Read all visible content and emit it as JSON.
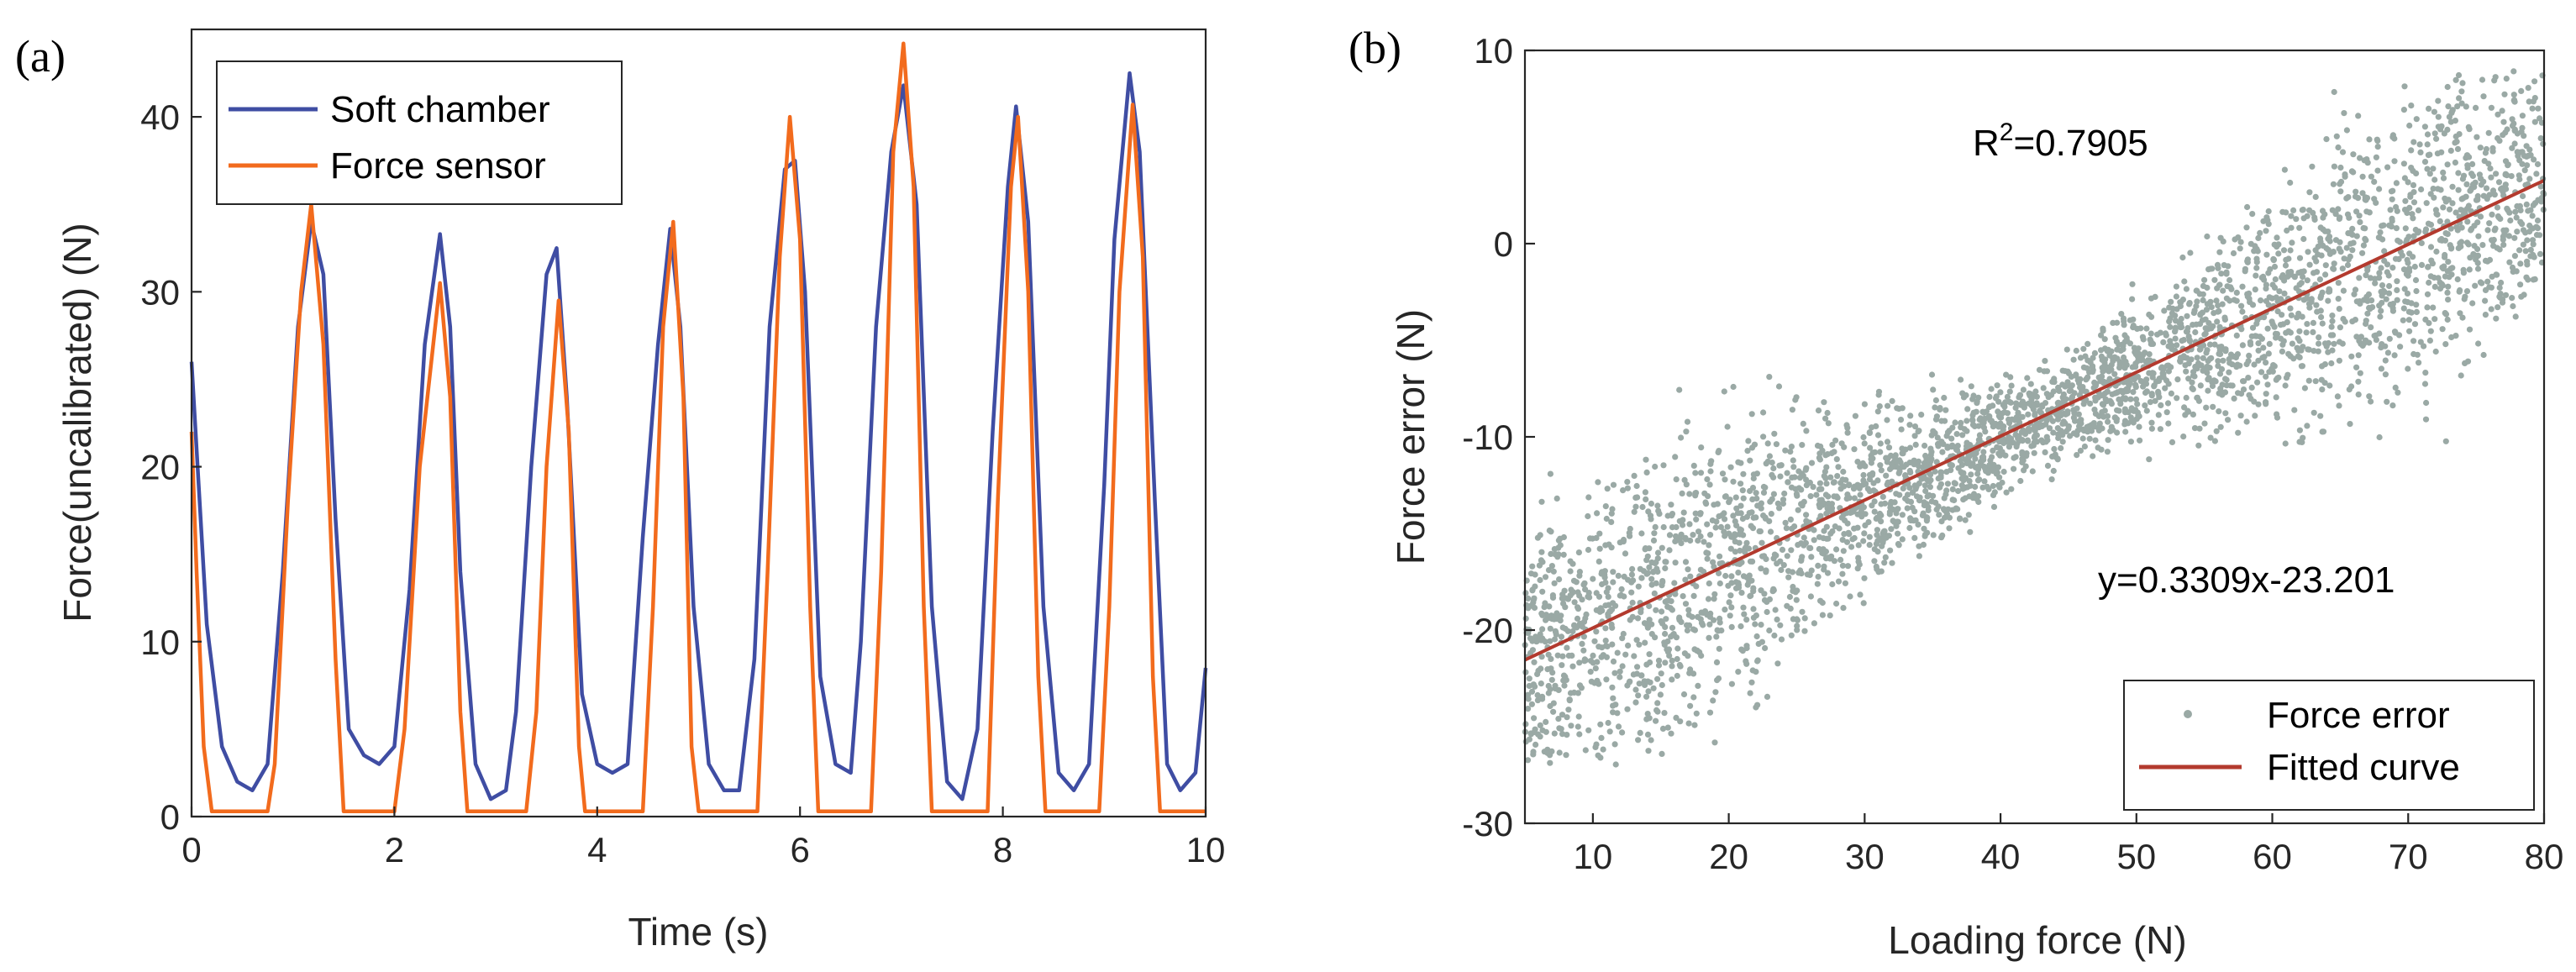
{
  "chart_data": [
    {
      "type": "line",
      "panel_label": "(a)",
      "xlabel": "Time (s)",
      "ylabel": "Force(uncalibrated) (N)",
      "xlim": [
        0,
        10
      ],
      "ylim": [
        0,
        45
      ],
      "xticks": [
        "0",
        "2",
        "4",
        "6",
        "8",
        "10"
      ],
      "yticks": [
        "0",
        "10",
        "20",
        "30",
        "40"
      ],
      "legend_position": "top-left",
      "legend": [
        "Soft chamber",
        "Force sensor"
      ],
      "colors": {
        "soft": "#3F4DA3",
        "sensor": "#F26B1D"
      },
      "series": [
        {
          "name": "Soft chamber",
          "points": [
            [
              0,
              26
            ],
            [
              0.05,
              21
            ],
            [
              0.15,
              11
            ],
            [
              0.3,
              4
            ],
            [
              0.45,
              2
            ],
            [
              0.6,
              1.5
            ],
            [
              0.75,
              3
            ],
            [
              0.9,
              14
            ],
            [
              1.05,
              28
            ],
            [
              1.18,
              34
            ],
            [
              1.3,
              31
            ],
            [
              1.42,
              17
            ],
            [
              1.55,
              5
            ],
            [
              1.7,
              3.5
            ],
            [
              1.85,
              3
            ],
            [
              2.0,
              4
            ],
            [
              2.15,
              13
            ],
            [
              2.3,
              27
            ],
            [
              2.45,
              33.3
            ],
            [
              2.55,
              28
            ],
            [
              2.65,
              14
            ],
            [
              2.8,
              3
            ],
            [
              2.95,
              1
            ],
            [
              3.1,
              1.5
            ],
            [
              3.2,
              6
            ],
            [
              3.35,
              20
            ],
            [
              3.5,
              31
            ],
            [
              3.6,
              32.5
            ],
            [
              3.7,
              24
            ],
            [
              3.85,
              7
            ],
            [
              4.0,
              3
            ],
            [
              4.15,
              2.5
            ],
            [
              4.3,
              3
            ],
            [
              4.45,
              16
            ],
            [
              4.6,
              27
            ],
            [
              4.72,
              33.6
            ],
            [
              4.82,
              28
            ],
            [
              4.95,
              12
            ],
            [
              5.1,
              3
            ],
            [
              5.25,
              1.5
            ],
            [
              5.4,
              1.5
            ],
            [
              5.55,
              9
            ],
            [
              5.7,
              28
            ],
            [
              5.85,
              37
            ],
            [
              5.95,
              37.5
            ],
            [
              6.05,
              30
            ],
            [
              6.2,
              8
            ],
            [
              6.35,
              3
            ],
            [
              6.5,
              2.5
            ],
            [
              6.6,
              10
            ],
            [
              6.75,
              28
            ],
            [
              6.9,
              38
            ],
            [
              7.02,
              41.8
            ],
            [
              7.15,
              35
            ],
            [
              7.3,
              12
            ],
            [
              7.45,
              2
            ],
            [
              7.6,
              1
            ],
            [
              7.75,
              5
            ],
            [
              7.9,
              22
            ],
            [
              8.05,
              36
            ],
            [
              8.13,
              40.6
            ],
            [
              8.25,
              34
            ],
            [
              8.4,
              12
            ],
            [
              8.55,
              2.5
            ],
            [
              8.7,
              1.5
            ],
            [
              8.85,
              3
            ],
            [
              9.0,
              19
            ],
            [
              9.1,
              33
            ],
            [
              9.25,
              42.5
            ],
            [
              9.35,
              38
            ],
            [
              9.5,
              18
            ],
            [
              9.62,
              3
            ],
            [
              9.75,
              1.5
            ],
            [
              9.9,
              2.5
            ],
            [
              10.0,
              8.5
            ]
          ]
        },
        {
          "name": "Force sensor",
          "points": [
            [
              0,
              22
            ],
            [
              0.05,
              14
            ],
            [
              0.12,
              4
            ],
            [
              0.2,
              0.3
            ],
            [
              0.75,
              0.3
            ],
            [
              0.82,
              3
            ],
            [
              0.95,
              18
            ],
            [
              1.08,
              30
            ],
            [
              1.18,
              35
            ],
            [
              1.3,
              27
            ],
            [
              1.42,
              9
            ],
            [
              1.5,
              0.3
            ],
            [
              2.0,
              0.3
            ],
            [
              2.1,
              5
            ],
            [
              2.25,
              20
            ],
            [
              2.45,
              30.5
            ],
            [
              2.55,
              24
            ],
            [
              2.65,
              6
            ],
            [
              2.72,
              0.3
            ],
            [
              3.3,
              0.3
            ],
            [
              3.4,
              6
            ],
            [
              3.5,
              20
            ],
            [
              3.62,
              29.5
            ],
            [
              3.72,
              22
            ],
            [
              3.82,
              4
            ],
            [
              3.88,
              0.3
            ],
            [
              4.45,
              0.3
            ],
            [
              4.55,
              12
            ],
            [
              4.65,
              28
            ],
            [
              4.75,
              34
            ],
            [
              4.85,
              24
            ],
            [
              4.93,
              4
            ],
            [
              5.0,
              0.3
            ],
            [
              5.58,
              0.3
            ],
            [
              5.68,
              14
            ],
            [
              5.8,
              32
            ],
            [
              5.9,
              40
            ],
            [
              6.0,
              33
            ],
            [
              6.1,
              12
            ],
            [
              6.18,
              0.3
            ],
            [
              6.7,
              0.3
            ],
            [
              6.8,
              14
            ],
            [
              6.92,
              38
            ],
            [
              7.02,
              44.2
            ],
            [
              7.12,
              36
            ],
            [
              7.22,
              12
            ],
            [
              7.3,
              0.3
            ],
            [
              7.85,
              0.3
            ],
            [
              7.95,
              18
            ],
            [
              8.08,
              36
            ],
            [
              8.15,
              40
            ],
            [
              8.25,
              30
            ],
            [
              8.35,
              8
            ],
            [
              8.42,
              0.3
            ],
            [
              8.95,
              0.3
            ],
            [
              9.05,
              12
            ],
            [
              9.15,
              30
            ],
            [
              9.28,
              40.7
            ],
            [
              9.38,
              32
            ],
            [
              9.48,
              8
            ],
            [
              9.55,
              0.3
            ],
            [
              10.0,
              0.3
            ]
          ]
        }
      ]
    },
    {
      "type": "scatter",
      "panel_label": "(b)",
      "xlabel": "Loading force (N)",
      "ylabel": "Force error (N)",
      "xlim": [
        5,
        80
      ],
      "ylim": [
        -30,
        10
      ],
      "xticks": [
        "10",
        "20",
        "30",
        "40",
        "50",
        "60",
        "70",
        "80"
      ],
      "yticks": [
        "-30",
        "-20",
        "-10",
        "0",
        "10"
      ],
      "legend_position": "bottom-right",
      "legend": [
        "Force error",
        "Fitted curve"
      ],
      "colors": {
        "points": "#9AA9A5",
        "fit": "#B33A2E"
      },
      "fit": {
        "slope": 0.3309,
        "intercept": -23.201
      },
      "annotation_r2_prefix": "R",
      "annotation_r2_sup": "2",
      "annotation_r2_value": "=0.7905",
      "annotation_eq": "y=0.3309x-23.201",
      "scatter_count": 3600,
      "scatter_spread": 4.5
    }
  ]
}
